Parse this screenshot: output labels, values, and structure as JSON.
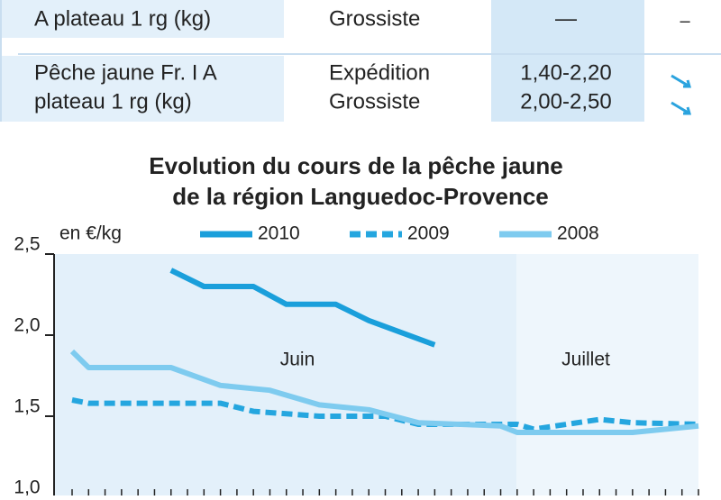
{
  "table": {
    "rows": [
      {
        "product": [
          "A plateau 1 rg (kg)"
        ],
        "stages": [
          "Grossiste"
        ],
        "prices": [
          "—"
        ]
      },
      {
        "product": [
          "Pêche jaune Fr. I A",
          "plateau 1 rg (kg)"
        ],
        "stages": [
          "Expédition",
          "Grossiste"
        ],
        "prices": [
          "1,40-2,20",
          "2,00-2,50"
        ]
      }
    ]
  },
  "chart_data": {
    "type": "line",
    "title": [
      "Evolution du cours de la pêche jaune",
      "de la région Languedoc-Provence"
    ],
    "y_label": "en €/kg",
    "annotations": [
      "Juin",
      "Juillet"
    ],
    "xlim": [
      0,
      38
    ],
    "ylim": [
      1.0,
      2.5
    ],
    "yticks": [
      {
        "value": 2.5,
        "label": "2,5"
      },
      {
        "value": 2.0,
        "label": "2,0"
      },
      {
        "value": 1.5,
        "label": "1,5"
      },
      {
        "value": 1.0,
        "label": "1,0"
      }
    ],
    "series": [
      {
        "name": "2010",
        "color": "#1a9fdb",
        "dashed": false,
        "x": [
          6,
          8,
          11,
          13,
          16,
          18,
          22
        ],
        "values": [
          2.4,
          2.3,
          2.3,
          2.19,
          2.19,
          2.09,
          1.94
        ]
      },
      {
        "name": "2009",
        "color": "#25a6df",
        "dashed": true,
        "x": [
          0,
          1,
          9,
          11,
          15,
          19,
          21,
          27,
          28,
          30,
          32,
          34,
          38
        ],
        "values": [
          1.6,
          1.58,
          1.58,
          1.53,
          1.5,
          1.5,
          1.45,
          1.45,
          1.42,
          1.45,
          1.48,
          1.46,
          1.45
        ]
      },
      {
        "name": "2008",
        "color": "#7ecbef",
        "dashed": false,
        "x": [
          0,
          1,
          6,
          9,
          12,
          15,
          18,
          21,
          26,
          27,
          34,
          38
        ],
        "values": [
          1.9,
          1.8,
          1.8,
          1.69,
          1.66,
          1.57,
          1.54,
          1.46,
          1.44,
          1.4,
          1.4,
          1.44
        ]
      }
    ]
  }
}
